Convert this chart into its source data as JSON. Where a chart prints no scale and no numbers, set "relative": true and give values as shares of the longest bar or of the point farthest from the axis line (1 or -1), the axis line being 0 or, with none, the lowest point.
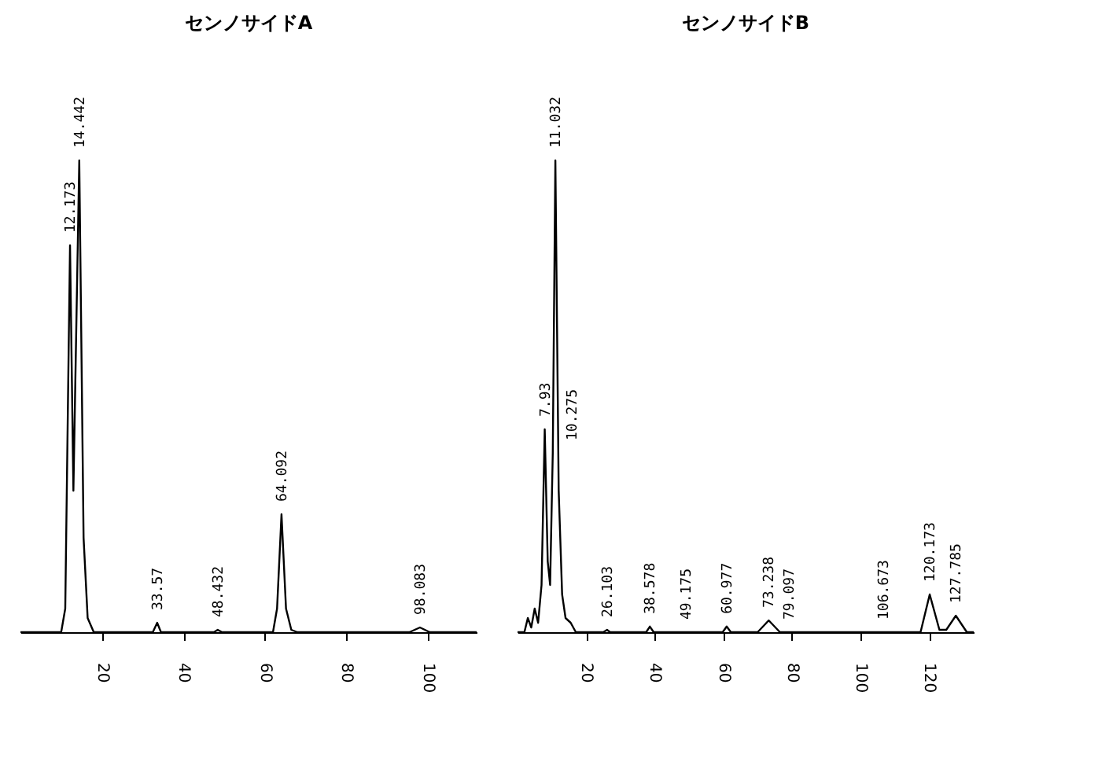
{
  "chart_data": [
    {
      "type": "line",
      "title": "センノサイドA",
      "relative": true,
      "xlim": [
        0,
        112
      ],
      "xticks": [
        20,
        40,
        60,
        80,
        100
      ],
      "grid": false,
      "series": [
        {
          "color": "#000000",
          "x": [
            0,
            10,
            11,
            12.173,
            13,
            14.442,
            15.5,
            16.5,
            18,
            32.5,
            33.57,
            34.5,
            47.5,
            48.432,
            49.5,
            62,
            63,
            64.092,
            65.2,
            66.5,
            68,
            95.5,
            98.083,
            100.5,
            112
          ],
          "values": [
            0,
            0,
            0.05,
            0.82,
            0.3,
            1.0,
            0.2,
            0.03,
            0,
            0,
            0.02,
            0,
            0,
            0.005,
            0,
            0,
            0.05,
            0.25,
            0.05,
            0.005,
            0,
            0,
            0.01,
            0,
            0
          ]
        }
      ],
      "annotations": [
        {
          "text": "12.173",
          "x": 12.173,
          "y": 0.82
        },
        {
          "text": "14.442",
          "x": 14.442,
          "y": 1.0
        },
        {
          "text": "33.57",
          "x": 33.57,
          "y": 0.02
        },
        {
          "text": "48.432",
          "x": 48.432,
          "y": 0.005
        },
        {
          "text": "64.092",
          "x": 64.092,
          "y": 0.25
        },
        {
          "text": "98.083",
          "x": 98.083,
          "y": 0.01
        }
      ]
    },
    {
      "type": "line",
      "title": "センノサイドB",
      "relative": true,
      "xlim": [
        0,
        133
      ],
      "xticks": [
        20,
        40,
        60,
        80,
        100,
        120
      ],
      "grid": false,
      "series": [
        {
          "color": "#000000",
          "x": [
            0,
            2,
            3,
            4,
            5,
            6,
            7,
            7.93,
            8.8,
            9.5,
            10.275,
            11.032,
            12,
            13,
            14,
            15.5,
            17,
            25,
            26.103,
            27,
            37.5,
            38.578,
            39.7,
            59.8,
            60.977,
            62.2,
            70,
            73.238,
            76.5,
            117.5,
            120.173,
            123,
            125,
            127.785,
            131,
            133
          ],
          "values": [
            0,
            0,
            0.03,
            0.01,
            0.05,
            0.02,
            0.1,
            0.43,
            0.15,
            0.1,
            0.38,
            1.0,
            0.3,
            0.08,
            0.03,
            0.02,
            0,
            0,
            0.005,
            0,
            0,
            0.012,
            0,
            0,
            0.012,
            0,
            0,
            0.025,
            0,
            0,
            0.08,
            0.005,
            0.005,
            0.035,
            0,
            0
          ]
        }
      ],
      "annotations": [
        {
          "text": "7.93",
          "x": 7.93,
          "y": 0.43
        },
        {
          "text": "10.275",
          "x": 10.275,
          "y": 0.38
        },
        {
          "text": "11.032",
          "x": 11.032,
          "y": 1.0
        },
        {
          "text": "26.103",
          "x": 26.103,
          "y": 0.005
        },
        {
          "text": "38.578",
          "x": 38.578,
          "y": 0.012
        },
        {
          "text": "49.175",
          "x": 49.175,
          "y": 0
        },
        {
          "text": "60.977",
          "x": 60.977,
          "y": 0.012
        },
        {
          "text": "73.238",
          "x": 73.238,
          "y": 0.025
        },
        {
          "text": "79.097",
          "x": 79.097,
          "y": 0
        },
        {
          "text": "106.673",
          "x": 106.673,
          "y": 0
        },
        {
          "text": "120.173",
          "x": 120.173,
          "y": 0.08
        },
        {
          "text": "127.785",
          "x": 127.785,
          "y": 0.035
        }
      ]
    }
  ]
}
